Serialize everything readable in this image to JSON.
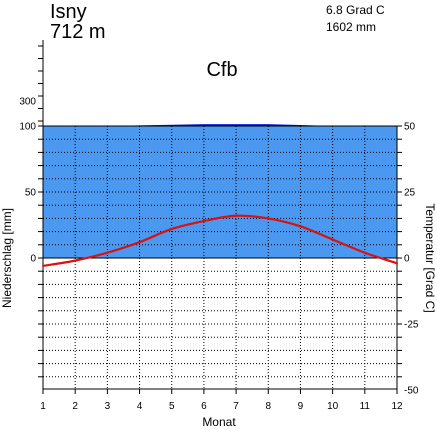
{
  "chart_data": {
    "type": "line",
    "station": "Isny",
    "elevation": "712 m",
    "mean_temperature": "6.8 Grad C",
    "annual_precipitation": "1602 mm",
    "climate_class": "Cfb",
    "xlabel": "Monat",
    "ylabel_left": "Niederschlag [mm]",
    "ylabel_right": "Temperatur [Grad C]",
    "x": [
      1,
      2,
      3,
      4,
      5,
      6,
      7,
      8,
      9,
      10,
      11,
      12
    ],
    "xlim": [
      1,
      12
    ],
    "left_ticks": [
      "0",
      "50",
      "100",
      "300"
    ],
    "right_ticks": [
      "50",
      "25",
      "0",
      "-25",
      "-50"
    ],
    "series": [
      {
        "name": "Niederschlag [mm]",
        "axis": "left",
        "kind": "area",
        "values": [
          100,
          100,
          100,
          105,
          110,
          115,
          115,
          115,
          108,
          100,
          104,
          104
        ]
      },
      {
        "name": "Temperatur [Grad C]",
        "axis": "right",
        "kind": "line",
        "values": [
          -3,
          -1,
          2,
          6,
          11,
          14,
          16,
          15,
          12,
          7,
          2,
          -2
        ]
      }
    ],
    "colors": {
      "precip_normal": "#4a98f0",
      "precip_humid": "#0b1fd6",
      "temperature": "#dd0f0f"
    },
    "grid": true
  }
}
